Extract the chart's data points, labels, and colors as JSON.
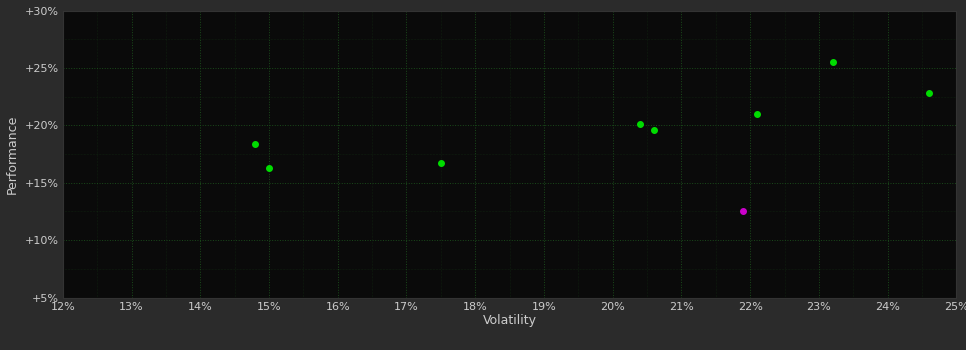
{
  "background_color": "#2b2b2b",
  "plot_bg_color": "#0a0a0a",
  "grid_color": "#1a4a1a",
  "text_color": "#cccccc",
  "xlabel": "Volatility",
  "ylabel": "Performance",
  "xlim": [
    0.12,
    0.25
  ],
  "ylim": [
    0.05,
    0.3
  ],
  "xticks": [
    0.12,
    0.13,
    0.14,
    0.15,
    0.16,
    0.17,
    0.18,
    0.19,
    0.2,
    0.21,
    0.22,
    0.23,
    0.24,
    0.25
  ],
  "yticks": [
    0.05,
    0.1,
    0.15,
    0.2,
    0.25,
    0.3
  ],
  "green_points": [
    [
      0.148,
      0.184
    ],
    [
      0.15,
      0.163
    ],
    [
      0.175,
      0.167
    ],
    [
      0.204,
      0.201
    ],
    [
      0.206,
      0.196
    ],
    [
      0.221,
      0.21
    ],
    [
      0.232,
      0.255
    ],
    [
      0.246,
      0.228
    ]
  ],
  "magenta_points": [
    [
      0.219,
      0.125
    ]
  ],
  "green_color": "#00dd00",
  "magenta_color": "#cc00cc",
  "marker_size": 4
}
